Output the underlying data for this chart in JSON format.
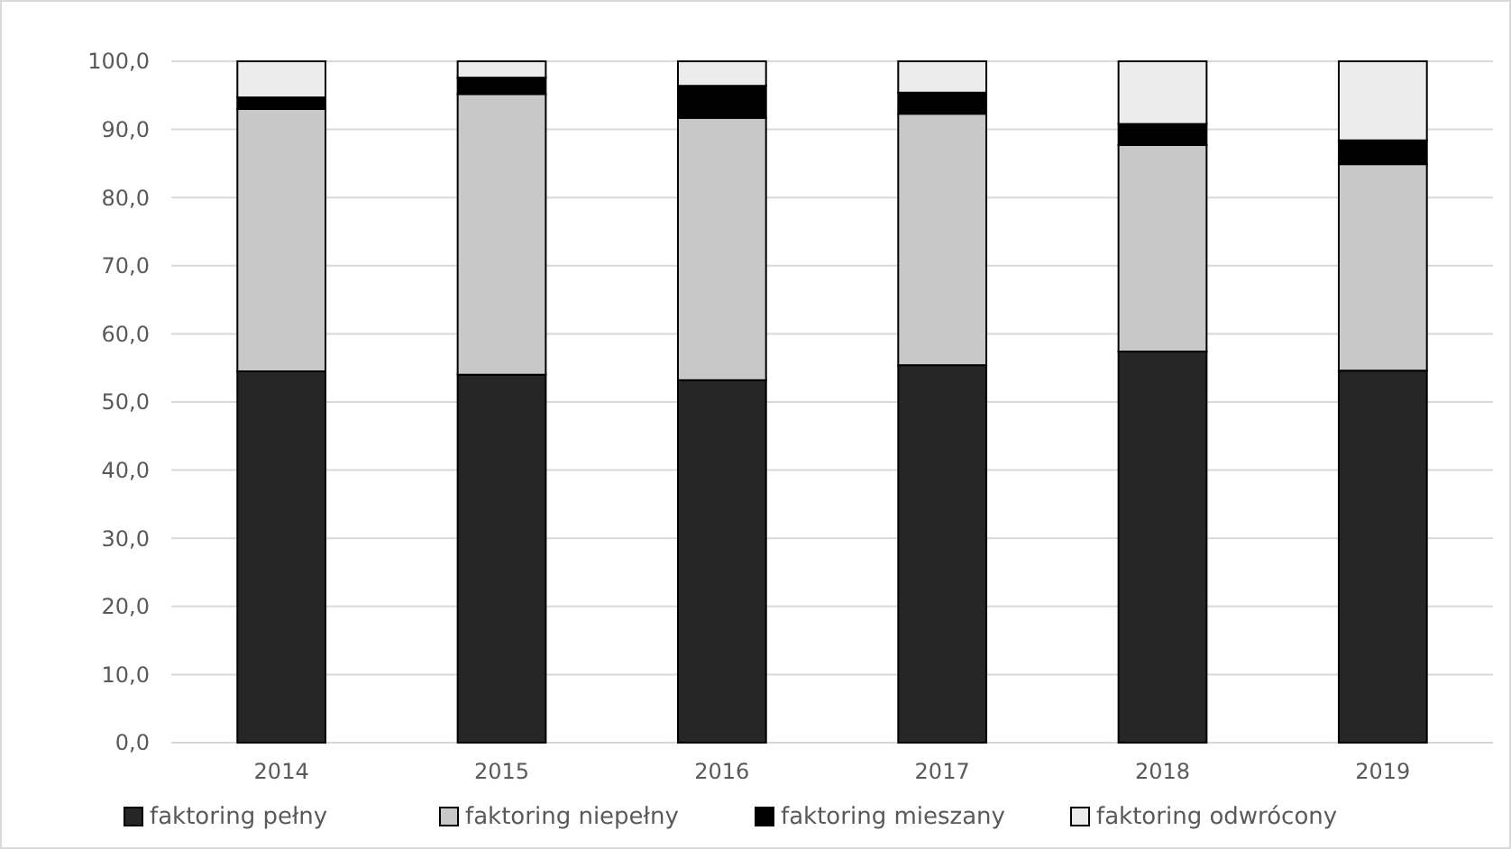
{
  "chart_data": {
    "type": "bar",
    "stacked": true,
    "categories": [
      "2014",
      "2015",
      "2016",
      "2017",
      "2018",
      "2019"
    ],
    "series": [
      {
        "name": "faktoring pełny",
        "color": "#262626",
        "values": [
          54.5,
          54.0,
          53.2,
          55.4,
          57.4,
          54.6
        ]
      },
      {
        "name": "faktoring niepełny",
        "color": "#c8c8c8",
        "values": [
          38.5,
          41.2,
          38.5,
          36.9,
          30.3,
          30.3
        ]
      },
      {
        "name": "faktoring mieszany",
        "color": "#000000",
        "values": [
          1.7,
          2.4,
          4.7,
          3.1,
          3.1,
          3.5
        ]
      },
      {
        "name": "faktoring odwrócony",
        "color": "#ececec",
        "values": [
          5.3,
          2.4,
          3.6,
          4.6,
          9.2,
          11.6
        ]
      }
    ],
    "ylim": [
      0,
      100
    ],
    "yticks": [
      {
        "value": 0,
        "label": "0,0"
      },
      {
        "value": 10,
        "label": "10,0"
      },
      {
        "value": 20,
        "label": "20,0"
      },
      {
        "value": 30,
        "label": "30,0"
      },
      {
        "value": 40,
        "label": "40,0"
      },
      {
        "value": 50,
        "label": "50,0"
      },
      {
        "value": 60,
        "label": "60,0"
      },
      {
        "value": 70,
        "label": "70,0"
      },
      {
        "value": 80,
        "label": "80,0"
      },
      {
        "value": 90,
        "label": "90,0"
      },
      {
        "value": 100,
        "label": "100,0"
      }
    ],
    "grid": "y",
    "legend": "bottom"
  }
}
